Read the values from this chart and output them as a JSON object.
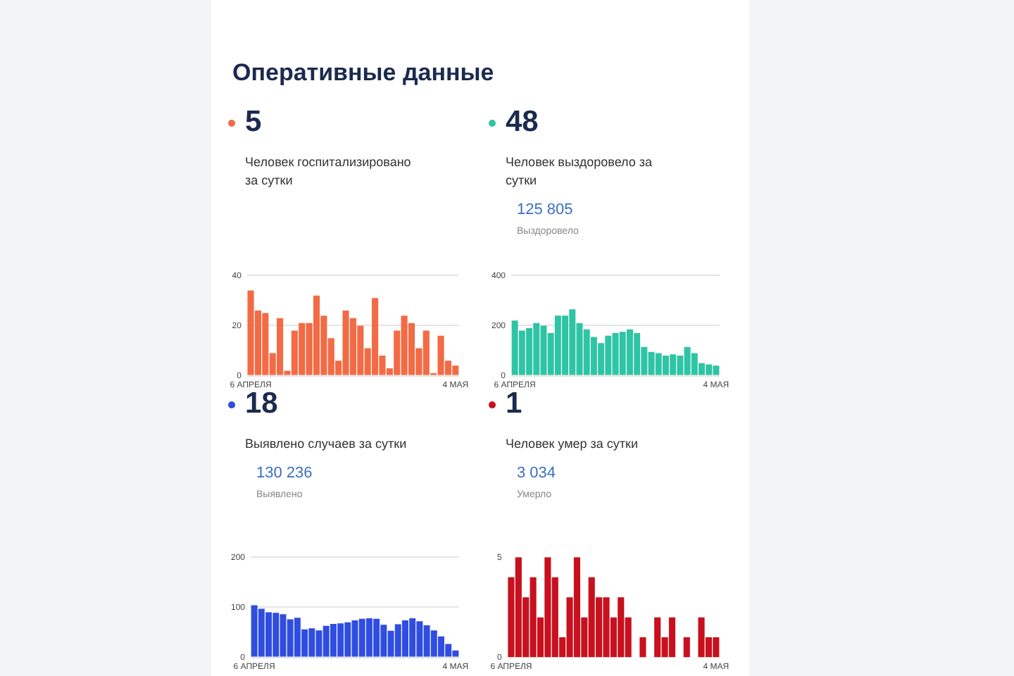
{
  "chart_data": [
    {
      "type": "bar",
      "title": "5",
      "subtitle": "Человек госпитализировано за сутки",
      "annotations": [
        "Оперативные данные"
      ],
      "categories": [
        "6 АПРЕЛЯ",
        null,
        null,
        null,
        null,
        null,
        null,
        null,
        null,
        null,
        null,
        null,
        null,
        null,
        null,
        null,
        null,
        null,
        null,
        null,
        null,
        null,
        null,
        null,
        null,
        null,
        null,
        null,
        "4 МАЯ"
      ],
      "color": "#f26b45",
      "values": [
        34,
        26,
        25,
        9,
        23,
        2,
        18,
        21,
        21,
        32,
        24,
        15,
        6,
        26,
        23,
        20,
        11,
        31,
        8,
        3,
        18,
        24,
        21,
        11,
        18,
        1,
        16,
        6,
        4
      ],
      "ylim": [
        0,
        40
      ],
      "yticks": [
        0,
        20,
        40
      ],
      "grid": "y"
    },
    {
      "type": "bar",
      "title": "48",
      "subtitle": "Человек выздоровело за сутки",
      "annotations": [
        "125 805",
        "Выздоровело"
      ],
      "categories": [
        "6 АПРЕЛЯ",
        null,
        null,
        null,
        null,
        null,
        null,
        null,
        null,
        null,
        null,
        null,
        null,
        null,
        null,
        null,
        null,
        null,
        null,
        null,
        null,
        null,
        null,
        null,
        null,
        null,
        null,
        null,
        "4 МАЯ"
      ],
      "color": "#2ec4a5",
      "values": [
        220,
        180,
        190,
        210,
        200,
        170,
        240,
        240,
        265,
        210,
        185,
        155,
        130,
        160,
        170,
        175,
        185,
        170,
        115,
        95,
        90,
        80,
        85,
        80,
        115,
        90,
        50,
        45,
        40
      ],
      "ylim": [
        0,
        400
      ],
      "yticks": [
        0,
        200,
        400
      ],
      "grid": "y"
    },
    {
      "type": "bar",
      "title": "18",
      "subtitle": "Выявлено случаев за сутки",
      "annotations": [
        "130 236",
        "Выявлено"
      ],
      "categories": [
        "6 АПРЕЛЯ",
        null,
        null,
        null,
        null,
        null,
        null,
        null,
        null,
        null,
        null,
        null,
        null,
        null,
        null,
        null,
        null,
        null,
        null,
        null,
        null,
        null,
        null,
        null,
        null,
        null,
        null,
        null,
        "4 МАЯ"
      ],
      "color": "#2f4de0",
      "values": [
        104,
        97,
        90,
        89,
        86,
        76,
        79,
        56,
        58,
        54,
        63,
        67,
        68,
        70,
        74,
        77,
        78,
        77,
        65,
        53,
        66,
        74,
        78,
        72,
        64,
        54,
        42,
        27,
        14
      ],
      "ylim": [
        0,
        200
      ],
      "yticks": [
        0,
        100,
        200
      ],
      "grid": "y"
    },
    {
      "type": "bar",
      "title": "1",
      "subtitle": "Человек умер за сутки",
      "annotations": [
        "3 034",
        "Умерло"
      ],
      "categories": [
        "6 АПРЕЛЯ",
        null,
        null,
        null,
        null,
        null,
        null,
        null,
        null,
        null,
        null,
        null,
        null,
        null,
        null,
        null,
        null,
        null,
        null,
        null,
        null,
        null,
        null,
        null,
        null,
        null,
        null,
        null,
        "4 МАЯ"
      ],
      "color": "#c8101e",
      "values": [
        4,
        5,
        3,
        4,
        2,
        5,
        4,
        1,
        3,
        5,
        2,
        4,
        3,
        3,
        2,
        3,
        2,
        0,
        1,
        0,
        2,
        1,
        2,
        0,
        1,
        0,
        2,
        1,
        1
      ],
      "ylim": [
        0,
        5
      ],
      "yticks": [
        0,
        5
      ]
    }
  ]
}
